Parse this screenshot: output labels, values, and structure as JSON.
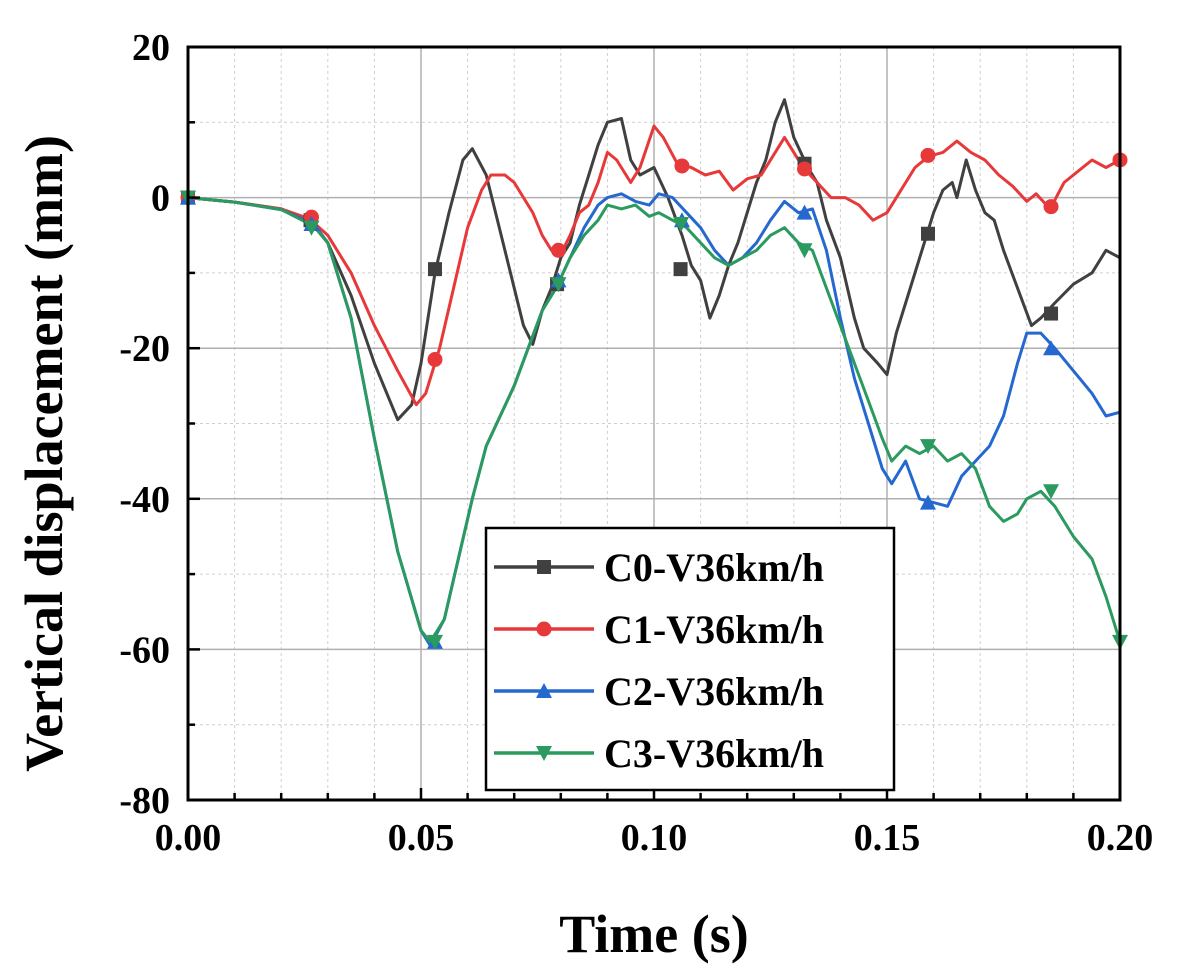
{
  "chart_data": {
    "type": "line",
    "title": "",
    "xlabel": "Time (s)",
    "ylabel": "Vertical displacement (mm)",
    "xlim": [
      0,
      0.2
    ],
    "ylim": [
      -80,
      20
    ],
    "xticks": [
      0.0,
      0.05,
      0.1,
      0.15,
      0.2
    ],
    "xtick_labels": [
      "0.00",
      "0.05",
      "0.10",
      "0.15",
      "0.20"
    ],
    "yticks": [
      -80,
      -60,
      -40,
      -20,
      0,
      20
    ],
    "ytick_labels": [
      "-80",
      "-60",
      "-40",
      "-20",
      "0",
      "20"
    ],
    "grid": true,
    "legend_position": "bottom-center",
    "series": [
      {
        "name": "C0-V36km/h",
        "color": "#404040",
        "marker": "square",
        "points": [
          [
            0,
            0
          ],
          [
            0.01,
            -0.6
          ],
          [
            0.02,
            -1.5
          ],
          [
            0.026,
            -3
          ],
          [
            0.03,
            -6
          ],
          [
            0.035,
            -13
          ],
          [
            0.04,
            -22
          ],
          [
            0.045,
            -29.5
          ],
          [
            0.048,
            -27.5
          ],
          [
            0.05,
            -22
          ],
          [
            0.053,
            -10
          ],
          [
            0.056,
            -2
          ],
          [
            0.059,
            5
          ],
          [
            0.061,
            6.5
          ],
          [
            0.064,
            3
          ],
          [
            0.066,
            -2
          ],
          [
            0.068,
            -7
          ],
          [
            0.07,
            -12
          ],
          [
            0.072,
            -17
          ],
          [
            0.074,
            -19.5
          ],
          [
            0.076,
            -15
          ],
          [
            0.078,
            -12
          ],
          [
            0.08,
            -8
          ],
          [
            0.082,
            -6
          ],
          [
            0.084,
            -1
          ],
          [
            0.086,
            3
          ],
          [
            0.088,
            7
          ],
          [
            0.09,
            10
          ],
          [
            0.093,
            10.5
          ],
          [
            0.095,
            5
          ],
          [
            0.097,
            3
          ],
          [
            0.1,
            4
          ],
          [
            0.103,
            0
          ],
          [
            0.106,
            -5
          ],
          [
            0.108,
            -9
          ],
          [
            0.11,
            -11
          ],
          [
            0.112,
            -16
          ],
          [
            0.114,
            -13
          ],
          [
            0.116,
            -9
          ],
          [
            0.118,
            -6
          ],
          [
            0.12,
            -2
          ],
          [
            0.122,
            2
          ],
          [
            0.124,
            5
          ],
          [
            0.126,
            10
          ],
          [
            0.128,
            13
          ],
          [
            0.13,
            8
          ],
          [
            0.133,
            4
          ],
          [
            0.135,
            2
          ],
          [
            0.137,
            -3
          ],
          [
            0.14,
            -8
          ],
          [
            0.143,
            -16
          ],
          [
            0.145,
            -20
          ],
          [
            0.148,
            -22
          ],
          [
            0.15,
            -23.5
          ],
          [
            0.152,
            -18
          ],
          [
            0.155,
            -12
          ],
          [
            0.158,
            -6
          ],
          [
            0.16,
            -2
          ],
          [
            0.162,
            1
          ],
          [
            0.164,
            2
          ],
          [
            0.165,
            0
          ],
          [
            0.167,
            5
          ],
          [
            0.169,
            1
          ],
          [
            0.171,
            -2
          ],
          [
            0.173,
            -3
          ],
          [
            0.175,
            -7
          ],
          [
            0.178,
            -12
          ],
          [
            0.181,
            -17
          ],
          [
            0.183,
            -16
          ],
          [
            0.186,
            -14
          ],
          [
            0.19,
            -11.5
          ],
          [
            0.194,
            -10
          ],
          [
            0.197,
            -7
          ],
          [
            0.2,
            -8
          ]
        ],
        "marker_points": [
          [
            0.0,
            0
          ],
          [
            0.0263,
            -3
          ],
          [
            0.053,
            -9.5
          ],
          [
            0.0792,
            -11.5
          ],
          [
            0.1057,
            -9.5
          ],
          [
            0.1323,
            4.5
          ],
          [
            0.1588,
            -4.8
          ],
          [
            0.1852,
            -15.4
          ]
        ]
      },
      {
        "name": "C1-V36km/h",
        "color": "#e8393a",
        "marker": "circle",
        "points": [
          [
            0,
            0
          ],
          [
            0.01,
            -0.6
          ],
          [
            0.02,
            -1.5
          ],
          [
            0.026,
            -2.8
          ],
          [
            0.03,
            -5
          ],
          [
            0.035,
            -10
          ],
          [
            0.04,
            -17
          ],
          [
            0.045,
            -23
          ],
          [
            0.049,
            -27.5
          ],
          [
            0.051,
            -26
          ],
          [
            0.054,
            -20
          ],
          [
            0.057,
            -12
          ],
          [
            0.06,
            -4
          ],
          [
            0.063,
            1
          ],
          [
            0.065,
            3
          ],
          [
            0.068,
            3
          ],
          [
            0.07,
            2
          ],
          [
            0.072,
            0
          ],
          [
            0.074,
            -2
          ],
          [
            0.076,
            -5
          ],
          [
            0.078,
            -7
          ],
          [
            0.08,
            -7.5
          ],
          [
            0.082,
            -5
          ],
          [
            0.084,
            -2
          ],
          [
            0.086,
            -1
          ],
          [
            0.088,
            2
          ],
          [
            0.09,
            6
          ],
          [
            0.092,
            5
          ],
          [
            0.095,
            2
          ],
          [
            0.097,
            4
          ],
          [
            0.1,
            9.5
          ],
          [
            0.102,
            8
          ],
          [
            0.105,
            4.5
          ],
          [
            0.108,
            4
          ],
          [
            0.111,
            3
          ],
          [
            0.114,
            3.5
          ],
          [
            0.117,
            1
          ],
          [
            0.12,
            2.5
          ],
          [
            0.123,
            3
          ],
          [
            0.126,
            6
          ],
          [
            0.128,
            8
          ],
          [
            0.13,
            6
          ],
          [
            0.132,
            4
          ],
          [
            0.135,
            2
          ],
          [
            0.138,
            0
          ],
          [
            0.141,
            0
          ],
          [
            0.144,
            -1
          ],
          [
            0.147,
            -3
          ],
          [
            0.15,
            -2
          ],
          [
            0.153,
            1
          ],
          [
            0.156,
            4
          ],
          [
            0.159,
            5.5
          ],
          [
            0.162,
            6
          ],
          [
            0.165,
            7.5
          ],
          [
            0.168,
            6
          ],
          [
            0.171,
            5
          ],
          [
            0.174,
            3
          ],
          [
            0.177,
            1.5
          ],
          [
            0.18,
            -0.5
          ],
          [
            0.182,
            0.5
          ],
          [
            0.185,
            -1.5
          ],
          [
            0.188,
            2
          ],
          [
            0.191,
            3.5
          ],
          [
            0.194,
            5
          ],
          [
            0.197,
            4
          ],
          [
            0.2,
            5
          ]
        ],
        "marker_points": [
          [
            0.0,
            0
          ],
          [
            0.0265,
            -2.6
          ],
          [
            0.053,
            -21.5
          ],
          [
            0.0795,
            -7
          ],
          [
            0.106,
            4.2
          ],
          [
            0.1323,
            3.8
          ],
          [
            0.1588,
            5.6
          ],
          [
            0.1852,
            -1.2
          ],
          [
            0.2,
            5
          ]
        ]
      },
      {
        "name": "C2-V36km/h",
        "color": "#2468d0",
        "marker": "triangle-up",
        "points": [
          [
            0,
            0
          ],
          [
            0.01,
            -0.6
          ],
          [
            0.02,
            -1.6
          ],
          [
            0.027,
            -3.5
          ],
          [
            0.03,
            -6
          ],
          [
            0.035,
            -16
          ],
          [
            0.04,
            -32
          ],
          [
            0.045,
            -47
          ],
          [
            0.05,
            -57.5
          ],
          [
            0.052,
            -59.5
          ],
          [
            0.055,
            -56
          ],
          [
            0.058,
            -48
          ],
          [
            0.061,
            -40
          ],
          [
            0.064,
            -33
          ],
          [
            0.067,
            -29
          ],
          [
            0.07,
            -25
          ],
          [
            0.073,
            -20
          ],
          [
            0.076,
            -15
          ],
          [
            0.079,
            -12
          ],
          [
            0.082,
            -8
          ],
          [
            0.085,
            -4
          ],
          [
            0.088,
            -1
          ],
          [
            0.09,
            0
          ],
          [
            0.093,
            0.5
          ],
          [
            0.096,
            -0.5
          ],
          [
            0.099,
            -1
          ],
          [
            0.101,
            0.5
          ],
          [
            0.104,
            0
          ],
          [
            0.107,
            -2
          ],
          [
            0.11,
            -4
          ],
          [
            0.113,
            -7
          ],
          [
            0.116,
            -9
          ],
          [
            0.119,
            -8
          ],
          [
            0.122,
            -6
          ],
          [
            0.125,
            -3
          ],
          [
            0.128,
            -0.5
          ],
          [
            0.131,
            -2
          ],
          [
            0.134,
            -1.5
          ],
          [
            0.137,
            -7
          ],
          [
            0.14,
            -16
          ],
          [
            0.143,
            -24
          ],
          [
            0.146,
            -30
          ],
          [
            0.149,
            -36
          ],
          [
            0.151,
            -38
          ],
          [
            0.154,
            -35
          ],
          [
            0.157,
            -40
          ],
          [
            0.16,
            -40.5
          ],
          [
            0.163,
            -41
          ],
          [
            0.166,
            -37
          ],
          [
            0.169,
            -35
          ],
          [
            0.172,
            -33
          ],
          [
            0.175,
            -29
          ],
          [
            0.178,
            -22
          ],
          [
            0.18,
            -18
          ],
          [
            0.183,
            -18
          ],
          [
            0.186,
            -20
          ],
          [
            0.19,
            -23
          ],
          [
            0.194,
            -26
          ],
          [
            0.197,
            -29
          ],
          [
            0.2,
            -28.5
          ]
        ],
        "marker_points": [
          [
            0.0,
            0
          ],
          [
            0.0265,
            -3.5
          ],
          [
            0.053,
            -59
          ],
          [
            0.0795,
            -11
          ],
          [
            0.106,
            -3
          ],
          [
            0.1323,
            -2
          ],
          [
            0.1588,
            -40.5
          ],
          [
            0.1852,
            -20
          ]
        ]
      },
      {
        "name": "C3-V36km/h",
        "color": "#2b9a5e",
        "marker": "triangle-down",
        "points": [
          [
            0,
            0
          ],
          [
            0.01,
            -0.6
          ],
          [
            0.02,
            -1.6
          ],
          [
            0.027,
            -3.8
          ],
          [
            0.03,
            -6
          ],
          [
            0.035,
            -16
          ],
          [
            0.04,
            -32
          ],
          [
            0.045,
            -47
          ],
          [
            0.05,
            -57.5
          ],
          [
            0.052,
            -59
          ],
          [
            0.055,
            -56
          ],
          [
            0.058,
            -48
          ],
          [
            0.061,
            -40
          ],
          [
            0.064,
            -33
          ],
          [
            0.067,
            -29
          ],
          [
            0.07,
            -25
          ],
          [
            0.073,
            -20
          ],
          [
            0.076,
            -15
          ],
          [
            0.079,
            -12
          ],
          [
            0.082,
            -8
          ],
          [
            0.085,
            -5
          ],
          [
            0.088,
            -3
          ],
          [
            0.09,
            -1
          ],
          [
            0.093,
            -1.5
          ],
          [
            0.096,
            -1
          ],
          [
            0.099,
            -2.5
          ],
          [
            0.101,
            -2
          ],
          [
            0.104,
            -3
          ],
          [
            0.107,
            -4
          ],
          [
            0.11,
            -6
          ],
          [
            0.113,
            -8
          ],
          [
            0.116,
            -9
          ],
          [
            0.119,
            -8
          ],
          [
            0.122,
            -7
          ],
          [
            0.125,
            -5
          ],
          [
            0.128,
            -4
          ],
          [
            0.131,
            -6
          ],
          [
            0.134,
            -7
          ],
          [
            0.137,
            -12
          ],
          [
            0.14,
            -17
          ],
          [
            0.143,
            -22
          ],
          [
            0.146,
            -27
          ],
          [
            0.149,
            -32
          ],
          [
            0.151,
            -35
          ],
          [
            0.154,
            -33
          ],
          [
            0.157,
            -34
          ],
          [
            0.16,
            -33
          ],
          [
            0.163,
            -35
          ],
          [
            0.166,
            -34
          ],
          [
            0.169,
            -36
          ],
          [
            0.172,
            -41
          ],
          [
            0.175,
            -43
          ],
          [
            0.178,
            -42
          ],
          [
            0.18,
            -40
          ],
          [
            0.183,
            -39
          ],
          [
            0.186,
            -41
          ],
          [
            0.19,
            -45
          ],
          [
            0.194,
            -48
          ],
          [
            0.197,
            -53
          ],
          [
            0.2,
            -59
          ]
        ],
        "marker_points": [
          [
            0.0,
            0
          ],
          [
            0.0265,
            -4
          ],
          [
            0.053,
            -59
          ],
          [
            0.0795,
            -11.5
          ],
          [
            0.1058,
            -3.5
          ],
          [
            0.1323,
            -7
          ],
          [
            0.1588,
            -33
          ],
          [
            0.1852,
            -39
          ],
          [
            0.2,
            -59
          ]
        ]
      }
    ]
  }
}
